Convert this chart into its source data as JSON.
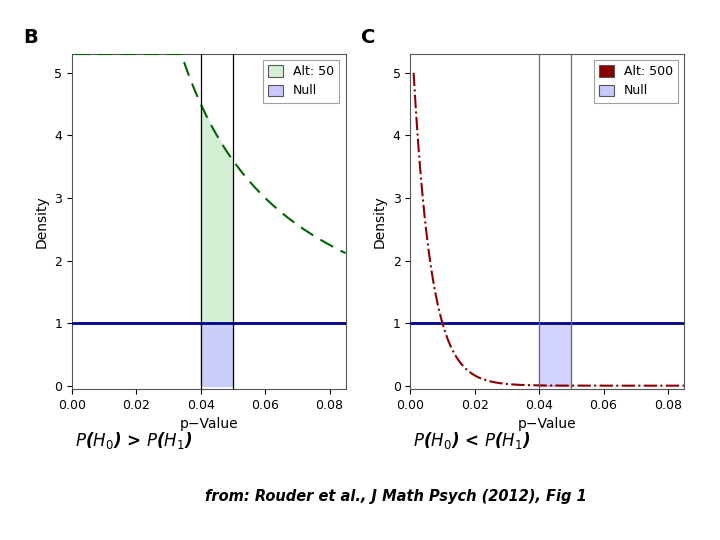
{
  "xlim": [
    0.0,
    0.085
  ],
  "ylim": [
    -0.05,
    5.3
  ],
  "xticks": [
    0.0,
    0.02,
    0.04,
    0.06,
    0.08
  ],
  "yticks": [
    0,
    1,
    2,
    3,
    4,
    5
  ],
  "xlabel": "p−Value",
  "ylabel": "Density",
  "null_line_y": 1.0,
  "vline1": 0.04,
  "vline2": 0.05,
  "panel_B_label": "B",
  "panel_C_label": "C",
  "alt50_label": "Alt: 50",
  "alt500_label": "Alt: 500",
  "null_label": "Null",
  "alt50_scale": 50,
  "alt500_scale": 500,
  "bg_color": "#ffffff",
  "null_line_color": "#00008b",
  "vline_color_B": "#000000",
  "vline_color_C": "#696969",
  "alt50_line_color": "#006400",
  "alt500_line_color": "#8b0000",
  "fill_green": "#d4f0d4",
  "fill_blue": "#c8c8ff",
  "fill_darkred": "#8b0000",
  "title_left": "P(H_{0}) > P(H_{1})",
  "title_right": "P(H_{0}) < P(H_{1})",
  "subtitle": "from: Rouder et al., J Math Psych (2012), Fig 1"
}
